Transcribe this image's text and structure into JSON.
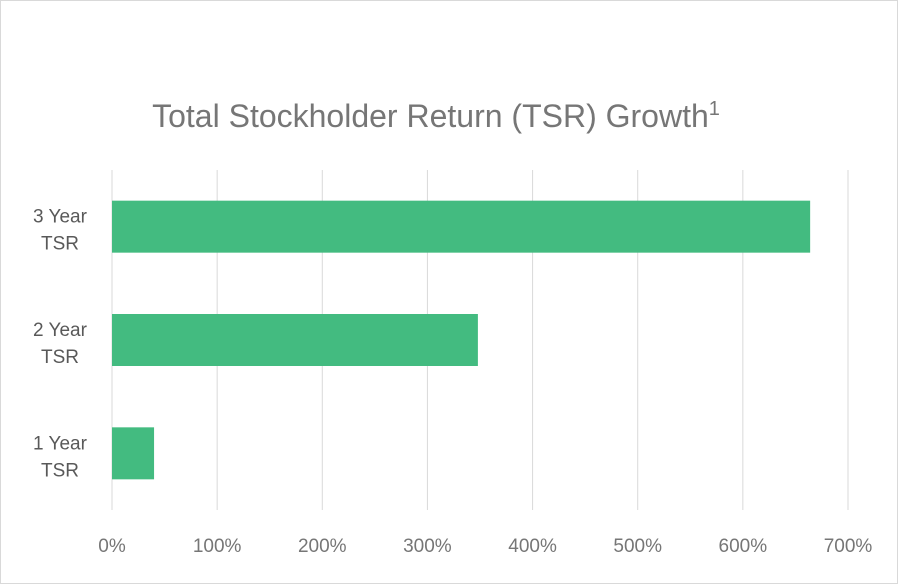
{
  "chart_data": {
    "type": "bar",
    "orientation": "horizontal",
    "title": "Total Stockholder Return (TSR) Growth",
    "title_superscript": "1",
    "categories": [
      {
        "line1": "3 Year",
        "line2": "TSR"
      },
      {
        "line1": "2 Year",
        "line2": "TSR"
      },
      {
        "line1": "1 Year",
        "line2": "TSR"
      }
    ],
    "values": [
      664,
      348,
      40
    ],
    "unit": "%",
    "xlim": [
      0,
      700
    ],
    "xticks": [
      0,
      100,
      200,
      300,
      400,
      500,
      600,
      700
    ],
    "xtick_labels": [
      "0%",
      "100%",
      "200%",
      "300%",
      "400%",
      "500%",
      "600%",
      "700%"
    ],
    "grid": true,
    "legend": "none",
    "colors": {
      "bar": "#43bb80",
      "grid": "#d9d9d9",
      "text": "#767676"
    }
  }
}
